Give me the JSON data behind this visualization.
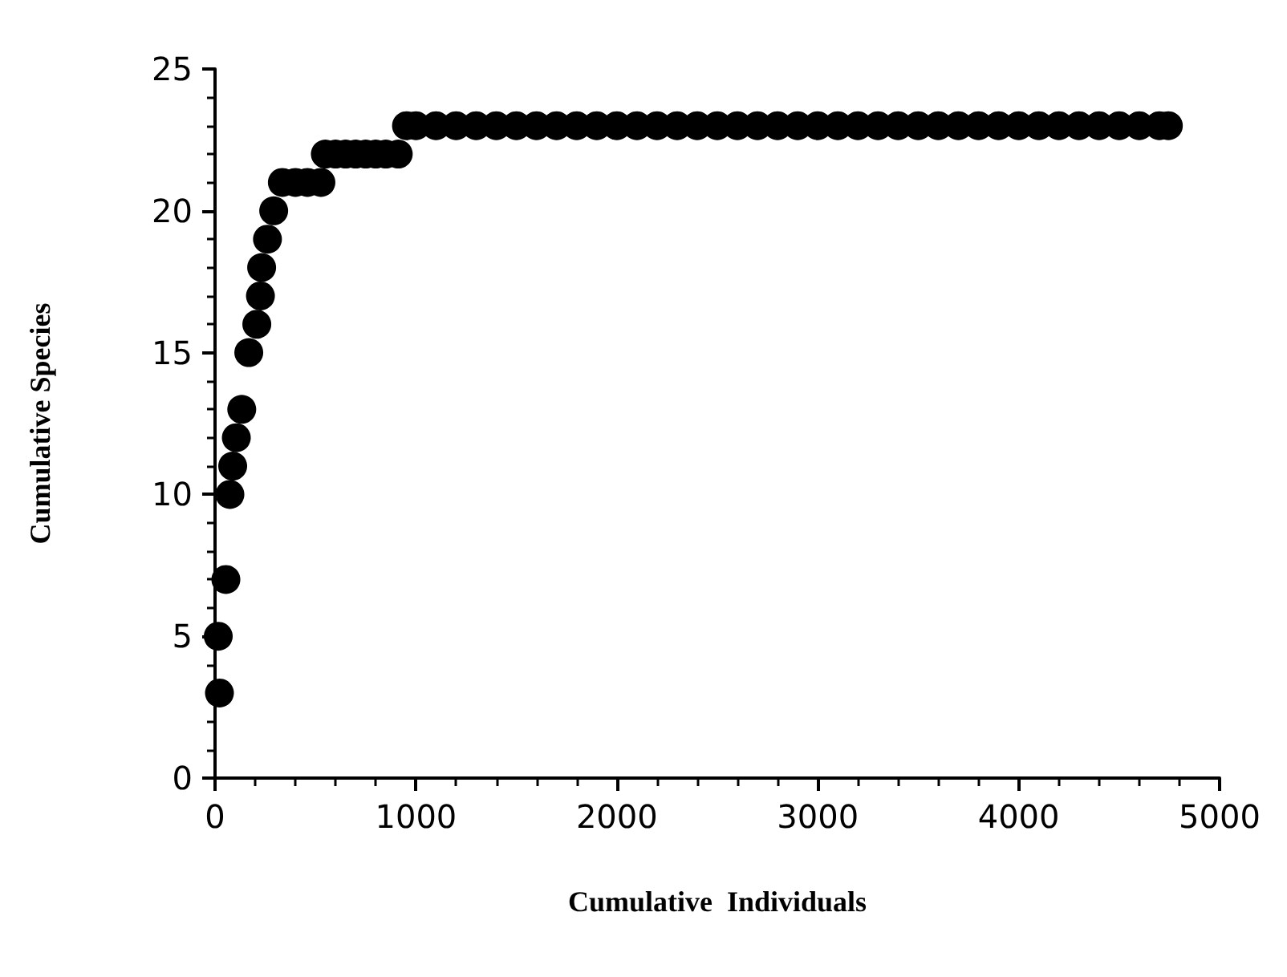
{
  "chart_data": {
    "type": "scatter",
    "xlabel": "Cumulative  Individuals",
    "ylabel": "Cumulative Species",
    "x": [
      16,
      22,
      54,
      74,
      88,
      106,
      133,
      168,
      208,
      226,
      232,
      261,
      292,
      335,
      400,
      460,
      527,
      549,
      600,
      650,
      700,
      750,
      800,
      850,
      912,
      953,
      1000,
      1100,
      1200,
      1300,
      1400,
      1500,
      1600,
      1700,
      1800,
      1900,
      2000,
      2100,
      2200,
      2300,
      2400,
      2500,
      2600,
      2700,
      2800,
      2900,
      3000,
      3100,
      3200,
      3300,
      3400,
      3500,
      3600,
      3700,
      3800,
      3900,
      4000,
      4100,
      4200,
      4300,
      4400,
      4500,
      4600,
      4700,
      4745
    ],
    "series": [
      {
        "color": "#000000",
        "values": [
          5,
          3,
          7,
          10,
          11,
          12,
          13,
          15,
          16,
          17,
          18,
          19,
          20,
          21,
          21,
          21,
          21,
          22,
          22,
          22,
          22,
          22,
          22,
          22,
          22,
          23,
          23,
          23,
          23,
          23,
          23,
          23,
          23,
          23,
          23,
          23,
          23,
          23,
          23,
          23,
          23,
          23,
          23,
          23,
          23,
          23,
          23,
          23,
          23,
          23,
          23,
          23,
          23,
          23,
          23,
          23,
          23,
          23,
          23,
          23,
          23,
          23,
          23,
          23,
          23
        ]
      }
    ],
    "xlim": [
      0,
      5000
    ],
    "xticks": [
      0,
      1000,
      2000,
      3000,
      4000,
      5000
    ],
    "ylim": [
      0,
      25
    ],
    "yticks": [
      0,
      5,
      10,
      15,
      20,
      25
    ],
    "marker": "circle",
    "grid": false
  }
}
